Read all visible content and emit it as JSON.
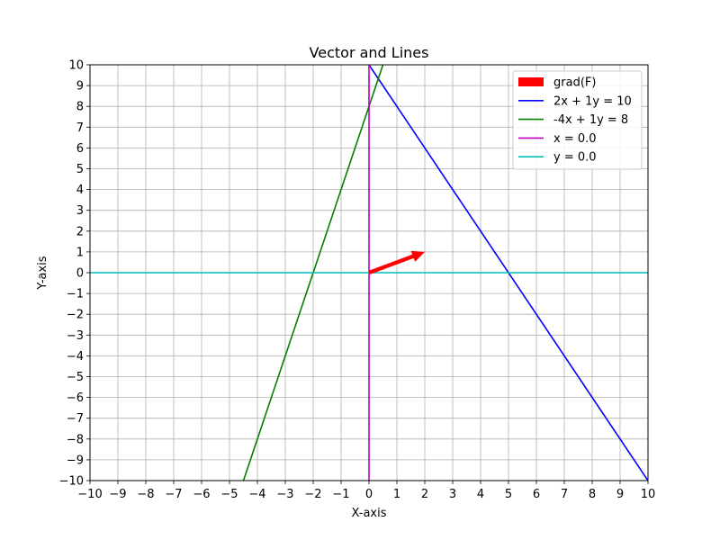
{
  "chart_data": {
    "type": "line",
    "title": "Vector and Lines",
    "xlabel": "X-axis",
    "ylabel": "Y-axis",
    "xlim": [
      -10,
      10
    ],
    "ylim": [
      -10,
      10
    ],
    "xticks": [
      -10,
      -9,
      -8,
      -7,
      -6,
      -5,
      -4,
      -3,
      -2,
      -1,
      0,
      1,
      2,
      3,
      4,
      5,
      6,
      7,
      8,
      9,
      10
    ],
    "yticks": [
      -10,
      -9,
      -8,
      -7,
      -6,
      -5,
      -4,
      -3,
      -2,
      -1,
      0,
      1,
      2,
      3,
      4,
      5,
      6,
      7,
      8,
      9,
      10
    ],
    "grid": true,
    "legend_position": "top-right",
    "vector": {
      "name": "grad(F)",
      "color": "#ff0000",
      "origin": [
        0,
        0
      ],
      "components": [
        2,
        1
      ]
    },
    "series": [
      {
        "name": "2x + 1y = 10",
        "color": "#0000ff",
        "points": [
          [
            0,
            10
          ],
          [
            10,
            -10
          ]
        ]
      },
      {
        "name": "-4x + 1y = 8",
        "color": "#008000",
        "points": [
          [
            -4.5,
            -10
          ],
          [
            0.5,
            10
          ]
        ]
      },
      {
        "name": "x = 0.0",
        "color": "#bf00bf",
        "points": [
          [
            0,
            -10
          ],
          [
            0,
            10
          ]
        ]
      },
      {
        "name": "y = 0.0",
        "color": "#00bfbf",
        "points": [
          [
            -10,
            0
          ],
          [
            10,
            0
          ]
        ]
      }
    ]
  }
}
